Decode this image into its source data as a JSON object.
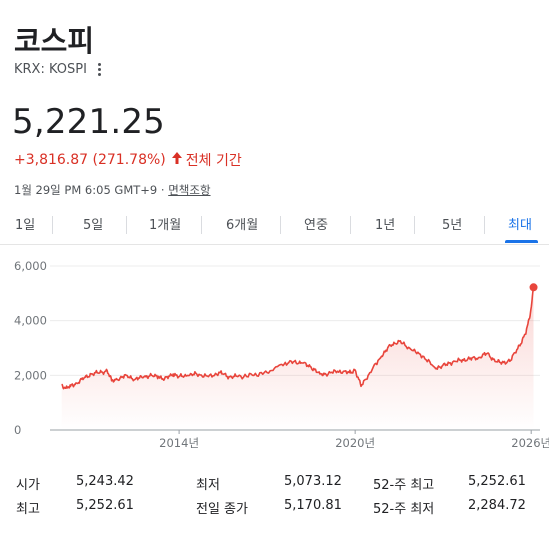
{
  "header": {
    "title": "코스피",
    "ticker": "KRX: KOSPI",
    "more_icon": "more-vert-icon"
  },
  "quote": {
    "price": "5,221.25",
    "change": "+3,816.87 (271.78%)",
    "direction_icon": "arrow-up-icon",
    "period_label": "전체 기간",
    "timestamp": "1월 29일 PM 6:05 GMT+9 · ",
    "disclaimer_link": "면책조항"
  },
  "tabs": [
    {
      "label": "1일"
    },
    {
      "label": "5일"
    },
    {
      "label": "1개월"
    },
    {
      "label": "6개월"
    },
    {
      "label": "연중"
    },
    {
      "label": "1년"
    },
    {
      "label": "5년"
    },
    {
      "label": "최대"
    }
  ],
  "selected_tab": "최대",
  "colors": {
    "line": "#e8453c",
    "positive": "#d93025",
    "accent": "#1a73e8"
  },
  "stats": {
    "open_label": "시가",
    "open_value": "5,243.42",
    "high_label": "최고",
    "high_value": "5,252.61",
    "low_label": "최저",
    "low_value": "5,073.12",
    "prev_close_label": "전일 종가",
    "prev_close_value": "5,170.81",
    "wk52_high_label": "52-주 최고",
    "wk52_high_value": "5,252.61",
    "wk52_low_label": "52-주 최저",
    "wk52_low_value": "2,284.72"
  },
  "chart_data": {
    "type": "area",
    "title": "",
    "xlabel": "",
    "ylabel": "",
    "ylim": [
      0,
      6000
    ],
    "xlim": [
      2009.6,
      2026.3
    ],
    "y_ticks": [
      "6,000",
      "4,000",
      "2,000",
      "0"
    ],
    "y_tick_values": [
      6000,
      4000,
      2000,
      0
    ],
    "x_ticks": [
      "2014년",
      "2020년",
      "2026년"
    ],
    "x_tick_values": [
      2014,
      2020,
      2026
    ],
    "grid": true,
    "series": [
      {
        "x": [
          2010.0,
          2010.15,
          2010.3,
          2010.5,
          2010.75,
          2011.0,
          2011.3,
          2011.55,
          2011.7,
          2011.9,
          2012.2,
          2012.5,
          2012.8,
          2013.0,
          2013.3,
          2013.5,
          2013.8,
          2014.0,
          2014.3,
          2014.6,
          2015.0,
          2015.4,
          2015.7,
          2016.0,
          2016.5,
          2017.0,
          2017.5,
          2017.9,
          2018.2,
          2018.5,
          2018.8,
          2019.0,
          2019.4,
          2019.8,
          2020.0,
          2020.2,
          2020.5,
          2020.9,
          2021.2,
          2021.5,
          2021.9,
          2022.3,
          2022.7,
          2022.9,
          2023.2,
          2023.6,
          2023.9,
          2024.2,
          2024.5,
          2024.8,
          2025.0,
          2025.3,
          2025.6,
          2025.8,
          2025.95,
          2026.08
        ],
        "y": [
          1650,
          1530,
          1600,
          1720,
          1880,
          2050,
          2100,
          2170,
          1800,
          1850,
          2000,
          1850,
          1950,
          1980,
          1960,
          1860,
          2050,
          1950,
          2000,
          2050,
          1950,
          2100,
          1950,
          1950,
          2000,
          2100,
          2400,
          2500,
          2450,
          2300,
          2050,
          2050,
          2150,
          2100,
          2200,
          1600,
          2100,
          2700,
          3100,
          3250,
          2950,
          2700,
          2300,
          2300,
          2450,
          2550,
          2600,
          2650,
          2800,
          2500,
          2450,
          2550,
          3100,
          3500,
          4100,
          5221.25
        ]
      }
    ]
  }
}
